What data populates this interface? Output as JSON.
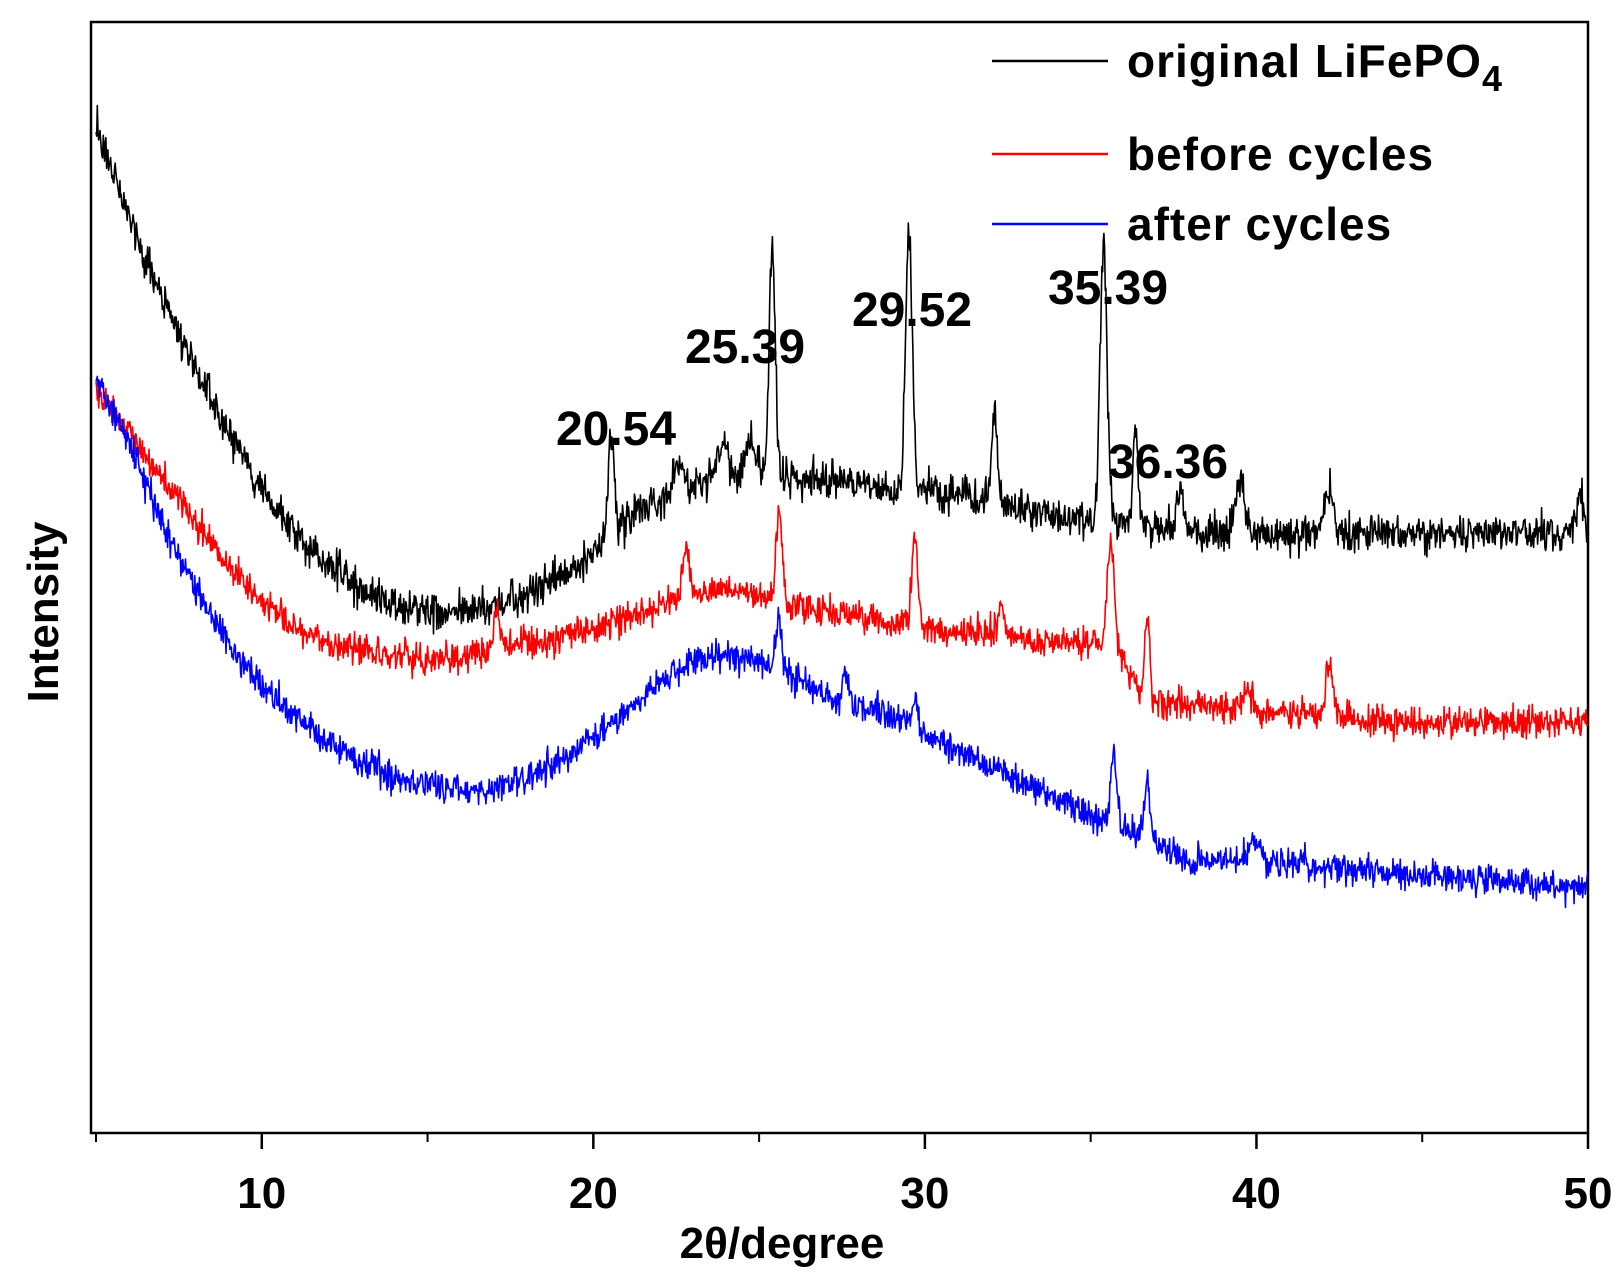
{
  "chart_data": {
    "type": "line",
    "title": "",
    "xlabel": "2θ/degree",
    "ylabel": "Intensity",
    "xlim": [
      5,
      50
    ],
    "ylim": [
      0,
      100
    ],
    "x_ticks": [
      10,
      20,
      30,
      40,
      50
    ],
    "x_tick_labels": [
      "10",
      "20",
      "30",
      "40",
      "50"
    ],
    "y_ticks_shown": false,
    "grid": false,
    "legend_position": "top-right",
    "legend": {
      "original": {
        "label_main": "original LiFePO",
        "label_sub": "4"
      },
      "before": {
        "label": "before cycles"
      },
      "after": {
        "label": "after cycles"
      }
    },
    "series": [
      {
        "name": "original LiFePO4",
        "color": "#000000",
        "noise": 2.2,
        "baseline": [
          [
            5,
            91
          ],
          [
            6,
            82
          ],
          [
            7,
            75
          ],
          [
            8,
            69
          ],
          [
            9,
            63
          ],
          [
            10,
            58
          ],
          [
            11,
            54
          ],
          [
            12,
            51
          ],
          [
            13,
            49
          ],
          [
            14,
            47.5
          ],
          [
            15,
            47
          ],
          [
            16,
            47
          ],
          [
            17,
            47.5
          ],
          [
            18,
            48.5
          ],
          [
            19,
            50
          ],
          [
            20,
            52
          ],
          [
            21,
            55.5
          ],
          [
            22,
            57
          ],
          [
            23,
            58
          ],
          [
            24,
            59
          ],
          [
            25,
            59.5
          ],
          [
            26,
            59
          ],
          [
            27,
            59
          ],
          [
            28,
            58.5
          ],
          [
            29,
            58
          ],
          [
            30,
            58
          ],
          [
            31,
            57.5
          ],
          [
            32,
            57
          ],
          [
            33,
            56
          ],
          [
            34,
            55.5
          ],
          [
            35,
            55
          ],
          [
            36,
            55
          ],
          [
            37,
            54.5
          ],
          [
            38,
            54
          ],
          [
            39,
            54
          ],
          [
            40,
            54
          ],
          [
            42,
            54
          ],
          [
            44,
            54
          ],
          [
            46,
            54
          ],
          [
            48,
            54
          ],
          [
            50,
            54.5
          ]
        ],
        "peaks": [
          [
            20.54,
            10,
            0.12
          ],
          [
            22.6,
            3,
            0.2
          ],
          [
            23.9,
            3,
            0.25
          ],
          [
            24.7,
            3,
            0.2
          ],
          [
            25.39,
            20,
            0.13
          ],
          [
            29.52,
            23,
            0.14
          ],
          [
            32.1,
            8,
            0.12
          ],
          [
            35.39,
            25,
            0.15
          ],
          [
            36.36,
            9,
            0.1
          ],
          [
            37.7,
            4,
            0.12
          ],
          [
            39.5,
            5,
            0.2
          ],
          [
            42.2,
            4,
            0.2
          ],
          [
            49.8,
            3,
            0.1
          ]
        ]
      },
      {
        "name": "before cycles",
        "color": "#ff0000",
        "noise": 1.8,
        "baseline": [
          [
            5,
            67
          ],
          [
            6,
            63
          ],
          [
            7,
            59
          ],
          [
            8,
            55
          ],
          [
            9,
            51
          ],
          [
            10,
            48
          ],
          [
            11,
            45.5
          ],
          [
            12,
            44
          ],
          [
            13,
            43.5
          ],
          [
            14,
            43
          ],
          [
            15,
            42.5
          ],
          [
            16,
            43
          ],
          [
            17,
            43.5
          ],
          [
            18,
            44
          ],
          [
            19,
            44.5
          ],
          [
            20,
            45.5
          ],
          [
            21,
            46.5
          ],
          [
            22,
            47.5
          ],
          [
            23,
            48.5
          ],
          [
            24,
            49
          ],
          [
            25,
            48.5
          ],
          [
            26,
            47.5
          ],
          [
            27,
            47
          ],
          [
            28,
            46.5
          ],
          [
            29,
            46
          ],
          [
            30,
            45.5
          ],
          [
            31,
            45
          ],
          [
            32,
            45
          ],
          [
            33,
            44.5
          ],
          [
            34,
            44
          ],
          [
            35,
            44
          ],
          [
            35.9,
            43
          ],
          [
            36.6,
            39
          ],
          [
            37.5,
            38.5
          ],
          [
            38,
            38.5
          ],
          [
            40,
            38
          ],
          [
            42,
            37.5
          ],
          [
            44,
            37
          ],
          [
            46,
            37
          ],
          [
            48,
            37
          ],
          [
            50,
            37
          ]
        ],
        "peaks": [
          [
            17.1,
            3,
            0.15
          ],
          [
            22.8,
            4,
            0.15
          ],
          [
            25.6,
            8,
            0.13
          ],
          [
            29.7,
            9,
            0.12
          ],
          [
            32.3,
            3,
            0.12
          ],
          [
            35.6,
            10,
            0.15
          ],
          [
            36.7,
            8,
            0.1
          ],
          [
            39.7,
            2,
            0.2
          ],
          [
            42.2,
            5,
            0.15
          ]
        ]
      },
      {
        "name": "after cycles",
        "color": "#0000ff",
        "noise": 1.8,
        "baseline": [
          [
            5,
            68
          ],
          [
            6,
            62
          ],
          [
            7,
            55
          ],
          [
            8,
            49
          ],
          [
            9,
            44
          ],
          [
            10,
            40.5
          ],
          [
            11,
            37.5
          ],
          [
            12,
            35
          ],
          [
            13,
            33.5
          ],
          [
            14,
            32
          ],
          [
            15,
            31.5
          ],
          [
            16,
            31
          ],
          [
            17,
            31
          ],
          [
            18,
            32
          ],
          [
            19,
            33.5
          ],
          [
            20,
            35.5
          ],
          [
            21,
            38
          ],
          [
            22,
            40.5
          ],
          [
            23,
            42.5
          ],
          [
            24,
            43
          ],
          [
            25,
            42.5
          ],
          [
            26,
            41
          ],
          [
            27,
            39.5
          ],
          [
            28,
            38.5
          ],
          [
            29,
            37.5
          ],
          [
            30,
            36
          ],
          [
            31,
            34.5
          ],
          [
            32,
            33
          ],
          [
            33,
            31.5
          ],
          [
            34,
            30
          ],
          [
            35,
            28.5
          ],
          [
            36,
            27.5
          ],
          [
            37,
            26
          ],
          [
            38,
            24.5
          ],
          [
            40,
            24.5
          ],
          [
            42,
            24
          ],
          [
            44,
            23.5
          ],
          [
            46,
            23
          ],
          [
            48,
            22.5
          ],
          [
            50,
            22
          ]
        ],
        "peaks": [
          [
            25.6,
            5,
            0.12
          ],
          [
            27.6,
            3,
            0.1
          ],
          [
            29.7,
            3,
            0.12
          ],
          [
            35.7,
            6,
            0.13
          ],
          [
            36.7,
            5,
            0.12
          ],
          [
            39.9,
            2,
            0.2
          ]
        ]
      }
    ],
    "annotations": [
      {
        "text": "20.54",
        "x": 20.54
      },
      {
        "text": "25.39",
        "x": 25.39
      },
      {
        "text": "29.52",
        "x": 29.52
      },
      {
        "text": "35.39",
        "x": 35.39
      },
      {
        "text": "36.36",
        "x": 36.36
      }
    ]
  }
}
